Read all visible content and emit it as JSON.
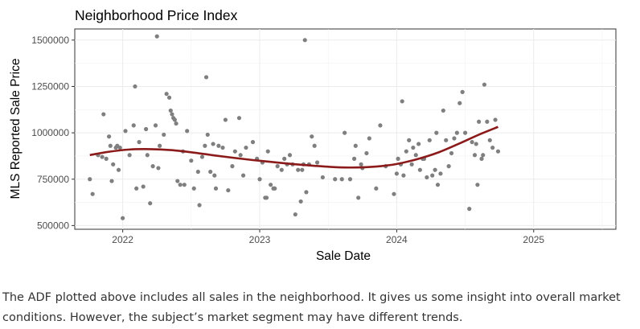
{
  "chart_data": {
    "type": "scatter",
    "title": "Neighborhood Price Index",
    "xlabel": "Sale Date",
    "ylabel": "MLS Reported Sale Price",
    "xlim": [
      2021.65,
      2025.6
    ],
    "ylim": [
      480000,
      1560000
    ],
    "xticks": [
      "2022",
      "2023",
      "2024",
      "2025"
    ],
    "yticks": [
      "500000",
      "750000",
      "1000000",
      "1250000",
      "1500000"
    ],
    "grid": true,
    "points": [
      [
        2021.76,
        750000
      ],
      [
        2021.78,
        670000
      ],
      [
        2021.82,
        880000
      ],
      [
        2021.85,
        870000
      ],
      [
        2021.86,
        1100000
      ],
      [
        2021.88,
        860000
      ],
      [
        2021.9,
        980000
      ],
      [
        2021.91,
        930000
      ],
      [
        2021.92,
        740000
      ],
      [
        2021.93,
        830000
      ],
      [
        2021.95,
        920000
      ],
      [
        2021.96,
        930000
      ],
      [
        2021.97,
        800000
      ],
      [
        2021.98,
        920000
      ],
      [
        2022.02,
        1010000
      ],
      [
        2022.0,
        540000
      ],
      [
        2022.05,
        880000
      ],
      [
        2022.08,
        1040000
      ],
      [
        2022.09,
        1250000
      ],
      [
        2022.1,
        700000
      ],
      [
        2022.12,
        950000
      ],
      [
        2022.15,
        710000
      ],
      [
        2022.17,
        1020000
      ],
      [
        2022.18,
        880000
      ],
      [
        2022.2,
        620000
      ],
      [
        2022.22,
        820000
      ],
      [
        2022.24,
        1040000
      ],
      [
        2022.25,
        1520000
      ],
      [
        2022.26,
        810000
      ],
      [
        2022.27,
        930000
      ],
      [
        2022.3,
        990000
      ],
      [
        2022.32,
        1210000
      ],
      [
        2022.34,
        1190000
      ],
      [
        2022.35,
        1120000
      ],
      [
        2022.36,
        1100000
      ],
      [
        2022.37,
        1080000
      ],
      [
        2022.38,
        1070000
      ],
      [
        2022.39,
        1050000
      ],
      [
        2022.4,
        740000
      ],
      [
        2022.42,
        720000
      ],
      [
        2022.44,
        900000
      ],
      [
        2022.45,
        720000
      ],
      [
        2022.47,
        1010000
      ],
      [
        2022.5,
        850000
      ],
      [
        2022.52,
        700000
      ],
      [
        2022.55,
        790000
      ],
      [
        2022.56,
        610000
      ],
      [
        2022.58,
        870000
      ],
      [
        2022.6,
        930000
      ],
      [
        2022.61,
        1300000
      ],
      [
        2022.62,
        990000
      ],
      [
        2022.64,
        790000
      ],
      [
        2022.66,
        940000
      ],
      [
        2022.67,
        770000
      ],
      [
        2022.68,
        700000
      ],
      [
        2022.7,
        930000
      ],
      [
        2022.73,
        920000
      ],
      [
        2022.75,
        1070000
      ],
      [
        2022.77,
        690000
      ],
      [
        2022.8,
        820000
      ],
      [
        2022.82,
        900000
      ],
      [
        2022.85,
        1080000
      ],
      [
        2022.86,
        880000
      ],
      [
        2022.88,
        770000
      ],
      [
        2022.9,
        920000
      ],
      [
        2022.95,
        950000
      ],
      [
        2022.98,
        860000
      ],
      [
        2023.0,
        750000
      ],
      [
        2023.02,
        840000
      ],
      [
        2023.04,
        650000
      ],
      [
        2023.05,
        650000
      ],
      [
        2023.06,
        900000
      ],
      [
        2023.08,
        720000
      ],
      [
        2023.1,
        700000
      ],
      [
        2023.11,
        700000
      ],
      [
        2023.13,
        820000
      ],
      [
        2023.16,
        800000
      ],
      [
        2023.18,
        860000
      ],
      [
        2023.2,
        830000
      ],
      [
        2023.22,
        880000
      ],
      [
        2023.24,
        830000
      ],
      [
        2023.26,
        560000
      ],
      [
        2023.28,
        800000
      ],
      [
        2023.3,
        630000
      ],
      [
        2023.31,
        800000
      ],
      [
        2023.32,
        830000
      ],
      [
        2023.33,
        1500000
      ],
      [
        2023.34,
        680000
      ],
      [
        2023.36,
        830000
      ],
      [
        2023.38,
        980000
      ],
      [
        2023.4,
        930000
      ],
      [
        2023.42,
        840000
      ],
      [
        2023.46,
        760000
      ],
      [
        2023.55,
        750000
      ],
      [
        2023.6,
        750000
      ],
      [
        2023.62,
        1000000
      ],
      [
        2023.66,
        750000
      ],
      [
        2023.69,
        860000
      ],
      [
        2023.7,
        930000
      ],
      [
        2023.72,
        650000
      ],
      [
        2023.74,
        830000
      ],
      [
        2023.75,
        810000
      ],
      [
        2023.78,
        890000
      ],
      [
        2023.8,
        970000
      ],
      [
        2023.85,
        700000
      ],
      [
        2023.88,
        1040000
      ],
      [
        2023.92,
        820000
      ],
      [
        2023.98,
        670000
      ],
      [
        2024.0,
        780000
      ],
      [
        2024.01,
        860000
      ],
      [
        2024.03,
        830000
      ],
      [
        2024.04,
        1170000
      ],
      [
        2024.05,
        770000
      ],
      [
        2024.07,
        900000
      ],
      [
        2024.09,
        960000
      ],
      [
        2024.11,
        830000
      ],
      [
        2024.12,
        920000
      ],
      [
        2024.14,
        880000
      ],
      [
        2024.16,
        940000
      ],
      [
        2024.17,
        800000
      ],
      [
        2024.19,
        860000
      ],
      [
        2024.2,
        860000
      ],
      [
        2024.22,
        760000
      ],
      [
        2024.24,
        960000
      ],
      [
        2024.26,
        770000
      ],
      [
        2024.28,
        800000
      ],
      [
        2024.29,
        1000000
      ],
      [
        2024.3,
        720000
      ],
      [
        2024.32,
        780000
      ],
      [
        2024.34,
        1120000
      ],
      [
        2024.36,
        960000
      ],
      [
        2024.38,
        820000
      ],
      [
        2024.4,
        890000
      ],
      [
        2024.42,
        970000
      ],
      [
        2024.44,
        1000000
      ],
      [
        2024.46,
        1160000
      ],
      [
        2024.48,
        1220000
      ],
      [
        2024.5,
        1000000
      ],
      [
        2024.53,
        590000
      ],
      [
        2024.55,
        950000
      ],
      [
        2024.57,
        880000
      ],
      [
        2024.58,
        940000
      ],
      [
        2024.59,
        720000
      ],
      [
        2024.6,
        1060000
      ],
      [
        2024.62,
        860000
      ],
      [
        2024.63,
        880000
      ],
      [
        2024.64,
        1260000
      ],
      [
        2024.66,
        1060000
      ],
      [
        2024.68,
        960000
      ],
      [
        2024.7,
        920000
      ],
      [
        2024.72,
        1070000
      ],
      [
        2024.74,
        900000
      ]
    ],
    "smooth_line": [
      [
        2021.76,
        880000
      ],
      [
        2021.9,
        898000
      ],
      [
        2022.05,
        910000
      ],
      [
        2022.2,
        912000
      ],
      [
        2022.35,
        907000
      ],
      [
        2022.5,
        895000
      ],
      [
        2022.65,
        880000
      ],
      [
        2022.8,
        866000
      ],
      [
        2022.95,
        853000
      ],
      [
        2023.1,
        842000
      ],
      [
        2023.25,
        831000
      ],
      [
        2023.4,
        822000
      ],
      [
        2023.55,
        815000
      ],
      [
        2023.7,
        813000
      ],
      [
        2023.85,
        818000
      ],
      [
        2024.0,
        832000
      ],
      [
        2024.15,
        858000
      ],
      [
        2024.3,
        893000
      ],
      [
        2024.45,
        940000
      ],
      [
        2024.6,
        990000
      ],
      [
        2024.74,
        1032000
      ]
    ],
    "point_color": "#7f7f7f",
    "line_color": "#8b1a1a"
  },
  "caption": "The ADF plotted above includes all sales in the neighborhood. It gives us some insight into overall market conditions. However, the subject’s market segment may have different trends."
}
